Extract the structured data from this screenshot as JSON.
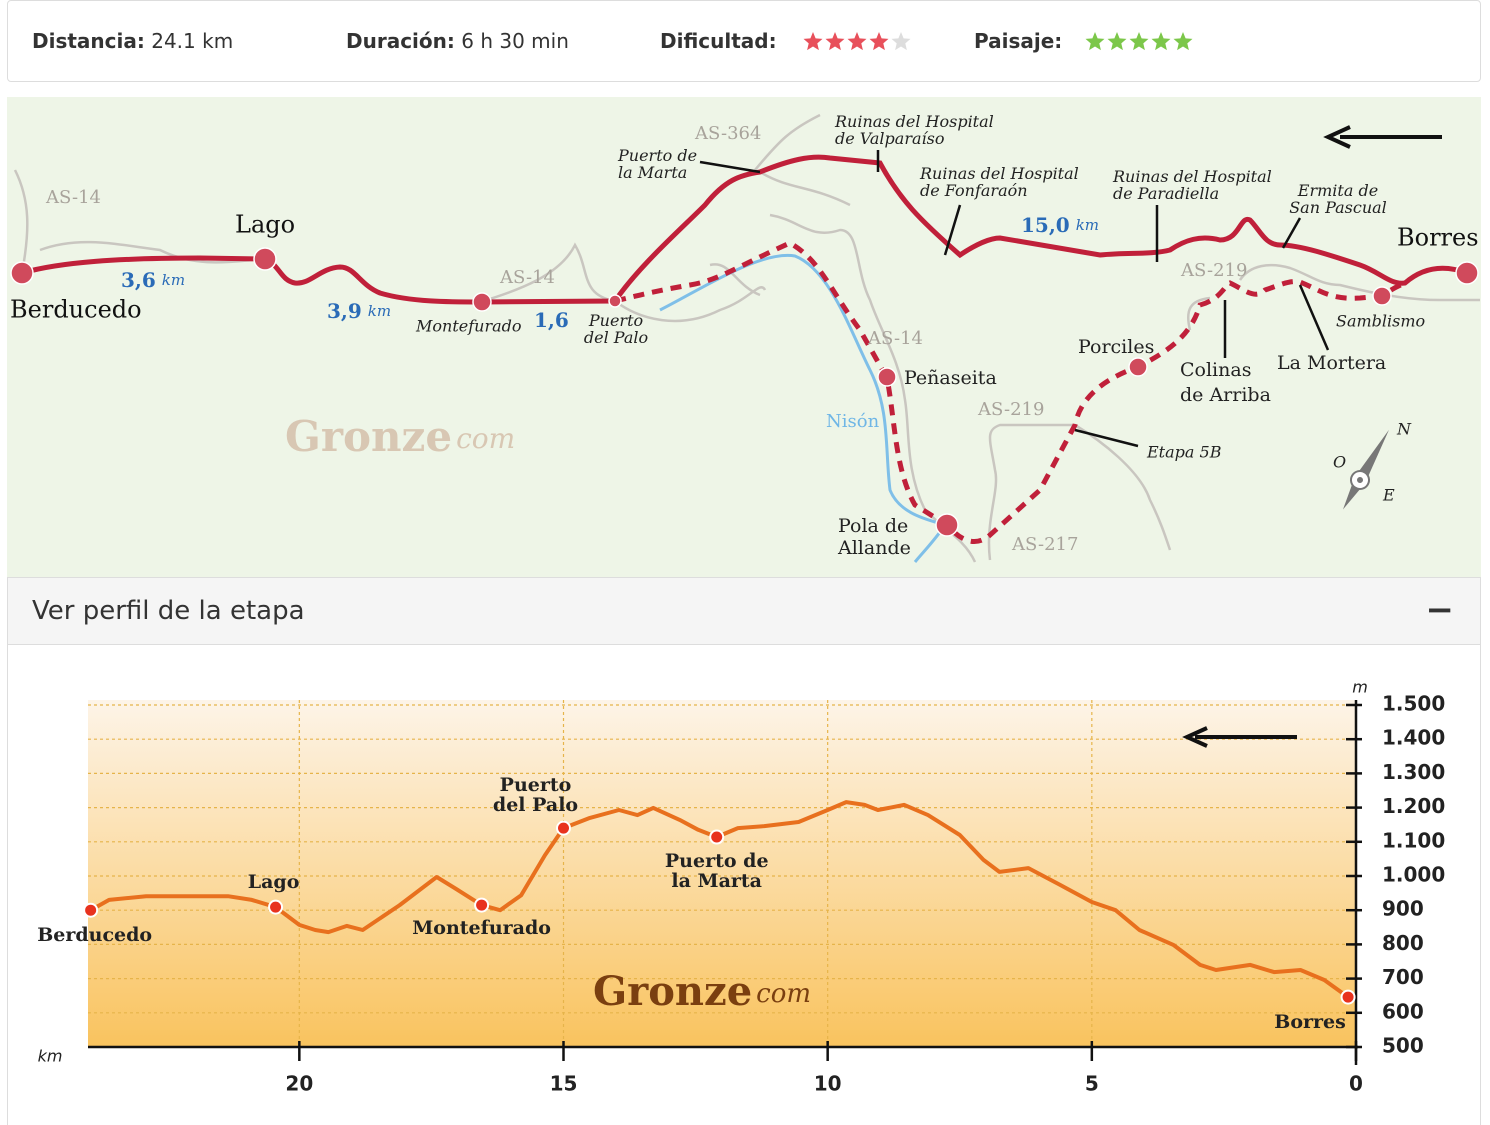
{
  "stats": {
    "distance_label": "Distancia:",
    "distance": "24.1 km",
    "duration_label": "Duración:",
    "duration": "6 h 30 min",
    "difficulty_label": "Dificultad:",
    "difficulty": 4,
    "landscape_label": "Paisaje:",
    "landscape": 5,
    "rating_max": 5
  },
  "map": {
    "roads": [
      "AS-14",
      "AS-364",
      "AS-14",
      "AS-14",
      "AS-219",
      "AS-219",
      "AS-217"
    ],
    "river": "Nisón",
    "places": [
      [
        "Berducedo"
      ],
      [
        "Lago"
      ],
      [
        "Montefurado"
      ],
      [
        "Puerto",
        "del Palo"
      ],
      [
        "Puerto de",
        "la Marta"
      ],
      [
        "Ruinas del Hospital",
        "de Valparaíso"
      ],
      [
        "Ruinas del Hospital",
        "de Fonfaraón"
      ],
      [
        "Ruinas del Hospital",
        "de Paradiella"
      ],
      [
        "Ermita de",
        "San Pascual"
      ],
      [
        "Borres"
      ],
      [
        "Samblismo"
      ],
      [
        "La Mortera"
      ],
      [
        "Colinas",
        "de Arriba"
      ],
      [
        "Porciles"
      ],
      [
        "Peñaseita"
      ],
      [
        "Pola de",
        "Allande"
      ],
      [
        "Etapa 5B"
      ]
    ],
    "segments": [
      "3,6",
      "3,9",
      "1,6",
      "15,0"
    ],
    "unit": "km",
    "compass": [
      "N",
      "O",
      "E"
    ],
    "watermark": [
      "Gronze",
      "com"
    ]
  },
  "profile_toggle": "Ver perfil de la etapa",
  "profile_toggle_icon": "−",
  "chart_data": {
    "type": "line",
    "x_label": "km",
    "y_label": "m",
    "watermark": [
      "Gronze",
      "com"
    ],
    "color": "#e8701e",
    "xlim": [
      24,
      0
    ],
    "xticks": [
      20,
      15,
      10,
      5,
      0
    ],
    "ylim": [
      500,
      1500
    ],
    "yticks": [
      {
        "value": 1500,
        "label": "1.500"
      },
      {
        "value": 1400,
        "label": "1.400"
      },
      {
        "value": 1300,
        "label": "1.300"
      },
      {
        "value": 1200,
        "label": "1.200"
      },
      {
        "value": 1100,
        "label": "1.100"
      },
      {
        "value": 1000,
        "label": "1.000"
      },
      900,
      800,
      700,
      600,
      500
    ],
    "grid": true,
    "x": [
      23.95,
      23.6,
      22.9,
      21.35,
      20.9,
      20.45,
      20.0,
      19.7,
      19.45,
      19.1,
      18.8,
      18.1,
      17.4,
      17.0,
      16.55,
      16.2,
      15.8,
      15.35,
      15.0,
      14.5,
      13.95,
      13.6,
      13.3,
      12.8,
      12.45,
      12.1,
      11.7,
      11.2,
      10.55,
      10.0,
      9.65,
      9.3,
      9.05,
      8.55,
      8.1,
      7.5,
      7.05,
      6.75,
      6.2,
      5.6,
      5.0,
      4.55,
      4.1,
      3.45,
      2.95,
      2.65,
      2.0,
      1.55,
      1.05,
      0.6,
      0.15
    ],
    "values": [
      900,
      930,
      941,
      941,
      930,
      909,
      857,
      842,
      836,
      854,
      842,
      915,
      997,
      959,
      915,
      900,
      944,
      1061,
      1140,
      1170,
      1193,
      1178,
      1199,
      1164,
      1135,
      1114,
      1140,
      1146,
      1158,
      1193,
      1216,
      1208,
      1193,
      1208,
      1178,
      1120,
      1047,
      1012,
      1023,
      974,
      924,
      900,
      842,
      798,
      740,
      725,
      740,
      719,
      725,
      696,
      646
    ],
    "points": [
      {
        "label": [
          "Berducedo"
        ],
        "x": 23.95,
        "value": 900
      },
      {
        "label": [
          "Lago"
        ],
        "x": 20.45,
        "value": 909
      },
      {
        "label": [
          "Montefurado"
        ],
        "x": 16.55,
        "value": 915
      },
      {
        "label": [
          "Puerto",
          "del Palo"
        ],
        "x": 15.0,
        "value": 1140
      },
      {
        "label": [
          "Puerto de",
          "la Marta"
        ],
        "x": 12.1,
        "value": 1114
      },
      {
        "label": [
          "Borres"
        ],
        "x": 0.15,
        "value": 646
      }
    ]
  }
}
